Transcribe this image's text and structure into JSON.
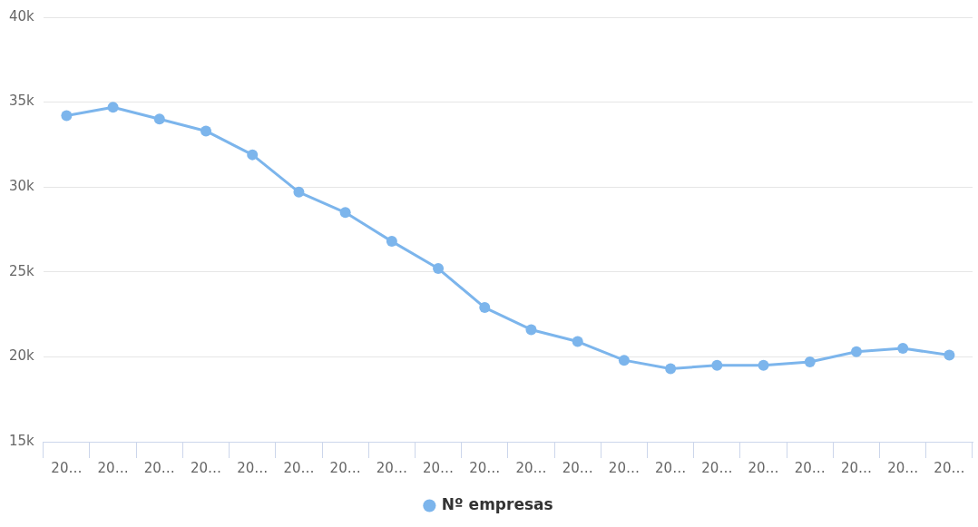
{
  "chart_data": {
    "type": "line",
    "categories": [
      "20…",
      "20…",
      "20…",
      "20…",
      "20…",
      "20…",
      "20…",
      "20…",
      "20…",
      "20…",
      "20…",
      "20…",
      "20…",
      "20…",
      "20…",
      "20…",
      "20…",
      "20…",
      "20…",
      "20…"
    ],
    "series": [
      {
        "name": "Nº empresas",
        "color": "#7cb5ec",
        "values": [
          34200,
          34700,
          34000,
          33300,
          31900,
          29700,
          28500,
          26800,
          25200,
          22900,
          21600,
          20900,
          19800,
          19300,
          19500,
          19500,
          19700,
          20300,
          20500,
          20100
        ]
      }
    ],
    "ylim": [
      15000,
      40000
    ],
    "yticks": [
      {
        "value": 15000,
        "label": "15k"
      },
      {
        "value": 20000,
        "label": "20k"
      },
      {
        "value": 25000,
        "label": "25k"
      },
      {
        "value": 30000,
        "label": "30k"
      },
      {
        "value": 35000,
        "label": "35k"
      },
      {
        "value": 40000,
        "label": "40k"
      }
    ],
    "grid": "y",
    "legend": "bottom",
    "marker": "circle",
    "line_style": "solid"
  }
}
